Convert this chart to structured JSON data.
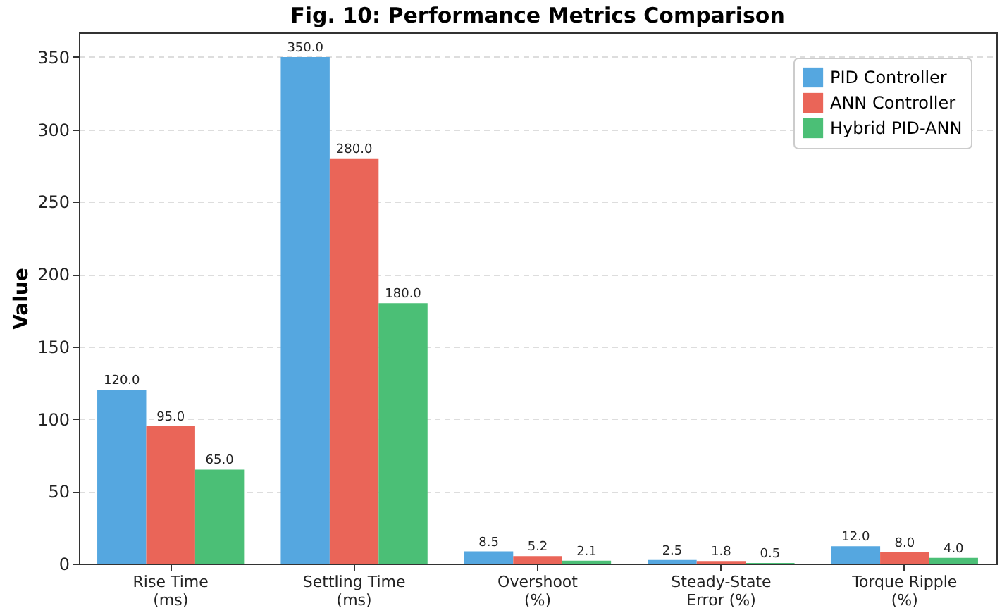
{
  "chart_data": {
    "type": "bar",
    "title": "Fig. 10: Performance Metrics Comparison",
    "ylabel": "Value",
    "categories": [
      "Rise Time\n(ms)",
      "Settling Time\n(ms)",
      "Overshoot\n(%)",
      "Steady-State\nError (%)",
      "Torque Ripple\n(%)"
    ],
    "series": [
      {
        "name": "PID Controller",
        "color": "#55a7e0",
        "values": [
          120.0,
          350.0,
          8.5,
          2.5,
          12.0
        ],
        "value_labels": [
          "120.0",
          "350.0",
          "8.5",
          "2.5",
          "12.0"
        ]
      },
      {
        "name": "ANN Controller",
        "color": "#ea6558",
        "values": [
          95.0,
          280.0,
          5.2,
          1.8,
          8.0
        ],
        "value_labels": [
          "95.0",
          "280.0",
          "5.2",
          "1.8",
          "8.0"
        ]
      },
      {
        "name": "Hybrid PID-ANN",
        "color": "#4bbf76",
        "values": [
          65.0,
          180.0,
          2.1,
          0.5,
          4.0
        ],
        "value_labels": [
          "65.0",
          "180.0",
          "2.1",
          "0.5",
          "4.0"
        ]
      }
    ],
    "ylim": [
      0,
      367
    ],
    "yticks": [
      0,
      50,
      100,
      150,
      200,
      250,
      300,
      350
    ],
    "grid": "y",
    "legend": "top right"
  }
}
